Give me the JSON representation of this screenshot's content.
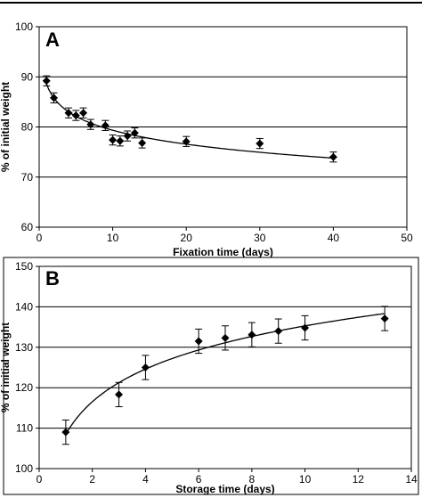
{
  "chart_data": [
    {
      "type": "scatter",
      "panel_label": "A",
      "xlabel": "Fixation time (days)",
      "ylabel": "% of initial weight",
      "xlim": [
        0,
        50
      ],
      "ylim": [
        60,
        100
      ],
      "x_ticks": [
        0,
        10,
        20,
        30,
        40,
        50
      ],
      "y_ticks": [
        60,
        70,
        80,
        90,
        100
      ],
      "grid": "horizontal",
      "marker": "diamond",
      "trendline": true,
      "series": [
        {
          "points": [
            {
              "x": 1,
              "y": 89.2,
              "err": 1.0
            },
            {
              "x": 2,
              "y": 85.8,
              "err": 1.0
            },
            {
              "x": 4,
              "y": 82.8,
              "err": 1.0
            },
            {
              "x": 5,
              "y": 82.3,
              "err": 1.0
            },
            {
              "x": 6,
              "y": 82.8,
              "err": 1.0
            },
            {
              "x": 7,
              "y": 80.5,
              "err": 1.0
            },
            {
              "x": 9,
              "y": 80.3,
              "err": 1.0
            },
            {
              "x": 10,
              "y": 77.4,
              "err": 1.0
            },
            {
              "x": 11,
              "y": 77.2,
              "err": 1.0
            },
            {
              "x": 12,
              "y": 78.2,
              "err": 1.0
            },
            {
              "x": 13,
              "y": 78.8,
              "err": 1.0
            },
            {
              "x": 14,
              "y": 76.8,
              "err": 1.0
            },
            {
              "x": 20,
              "y": 77.1,
              "err": 1.0
            },
            {
              "x": 30,
              "y": 76.7,
              "err": 1.0
            },
            {
              "x": 40,
              "y": 74.0,
              "err": 1.0
            }
          ]
        }
      ]
    },
    {
      "type": "scatter",
      "panel_label": "B",
      "xlabel": "Storage time (days)",
      "ylabel": "% of initial weight",
      "xlim": [
        0,
        14
      ],
      "ylim": [
        100,
        150
      ],
      "x_ticks": [
        0,
        2,
        4,
        6,
        8,
        10,
        12,
        14
      ],
      "y_ticks": [
        100,
        110,
        120,
        130,
        140,
        150
      ],
      "grid": "horizontal",
      "marker": "diamond",
      "trendline": true,
      "series": [
        {
          "points": [
            {
              "x": 1,
              "y": 109.0,
              "err": 3.0
            },
            {
              "x": 3,
              "y": 118.3,
              "err": 3.0
            },
            {
              "x": 4,
              "y": 125.0,
              "err": 3.0
            },
            {
              "x": 6,
              "y": 131.5,
              "err": 3.0
            },
            {
              "x": 7,
              "y": 132.3,
              "err": 3.0
            },
            {
              "x": 8,
              "y": 133.1,
              "err": 3.0
            },
            {
              "x": 9,
              "y": 134.0,
              "err": 3.0
            },
            {
              "x": 10,
              "y": 134.8,
              "err": 3.0
            },
            {
              "x": 13,
              "y": 137.1,
              "err": 3.0
            }
          ]
        }
      ]
    }
  ]
}
